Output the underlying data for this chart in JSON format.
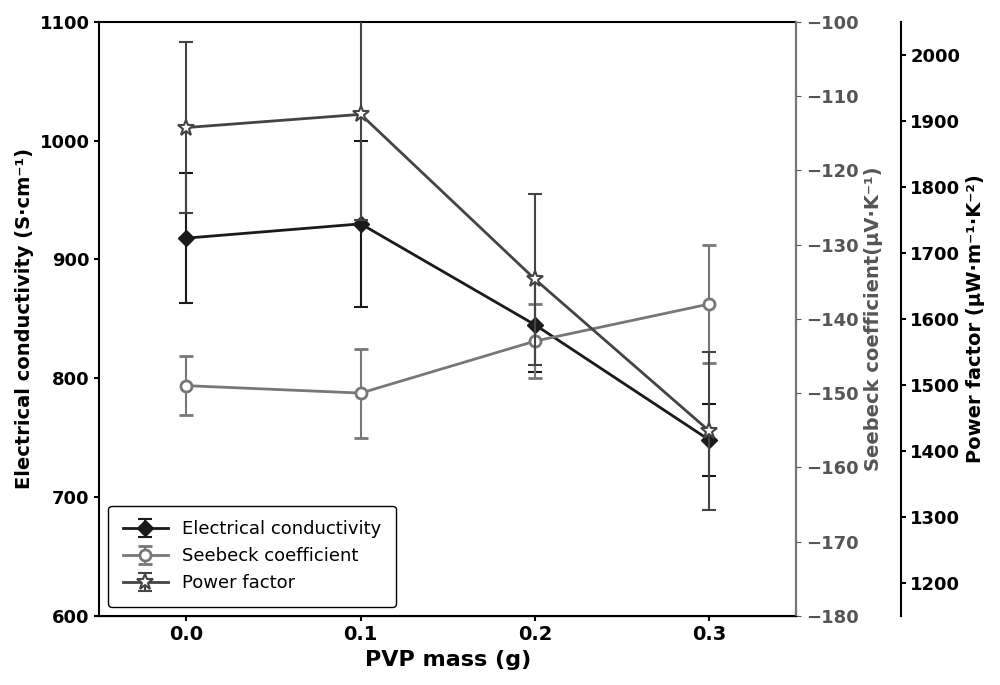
{
  "x": [
    0.0,
    0.1,
    0.2,
    0.3
  ],
  "elec_cond": [
    918,
    930,
    845,
    748
  ],
  "elec_cond_err": [
    55,
    70,
    40,
    30
  ],
  "seebeck": [
    -149,
    -150,
    -143,
    -138
  ],
  "seebeck_err": [
    4,
    6,
    5,
    8
  ],
  "power_factor": [
    1890,
    1910,
    1660,
    1430
  ],
  "power_factor_err": [
    130,
    160,
    130,
    120
  ],
  "xlabel": "PVP mass (g)",
  "ylabel_left": "Electrical conductivity (S·cm⁻¹)",
  "ylabel_mid": "Seebeck coefficient(μV·K⁻¹)",
  "ylabel_right": "Power factor (μW·m⁻¹·K⁻²)",
  "ylim_left": [
    600,
    1100
  ],
  "ylim_mid": [
    -180,
    -100
  ],
  "ylim_right": [
    1150,
    2050
  ],
  "color_elec": "#1a1a1a",
  "color_seebeck": "#777777",
  "color_pf": "#444444",
  "legend_labels": [
    "Electrical conductivity",
    "Seebeck coefficient",
    "Power factor"
  ],
  "background_color": "#ffffff"
}
